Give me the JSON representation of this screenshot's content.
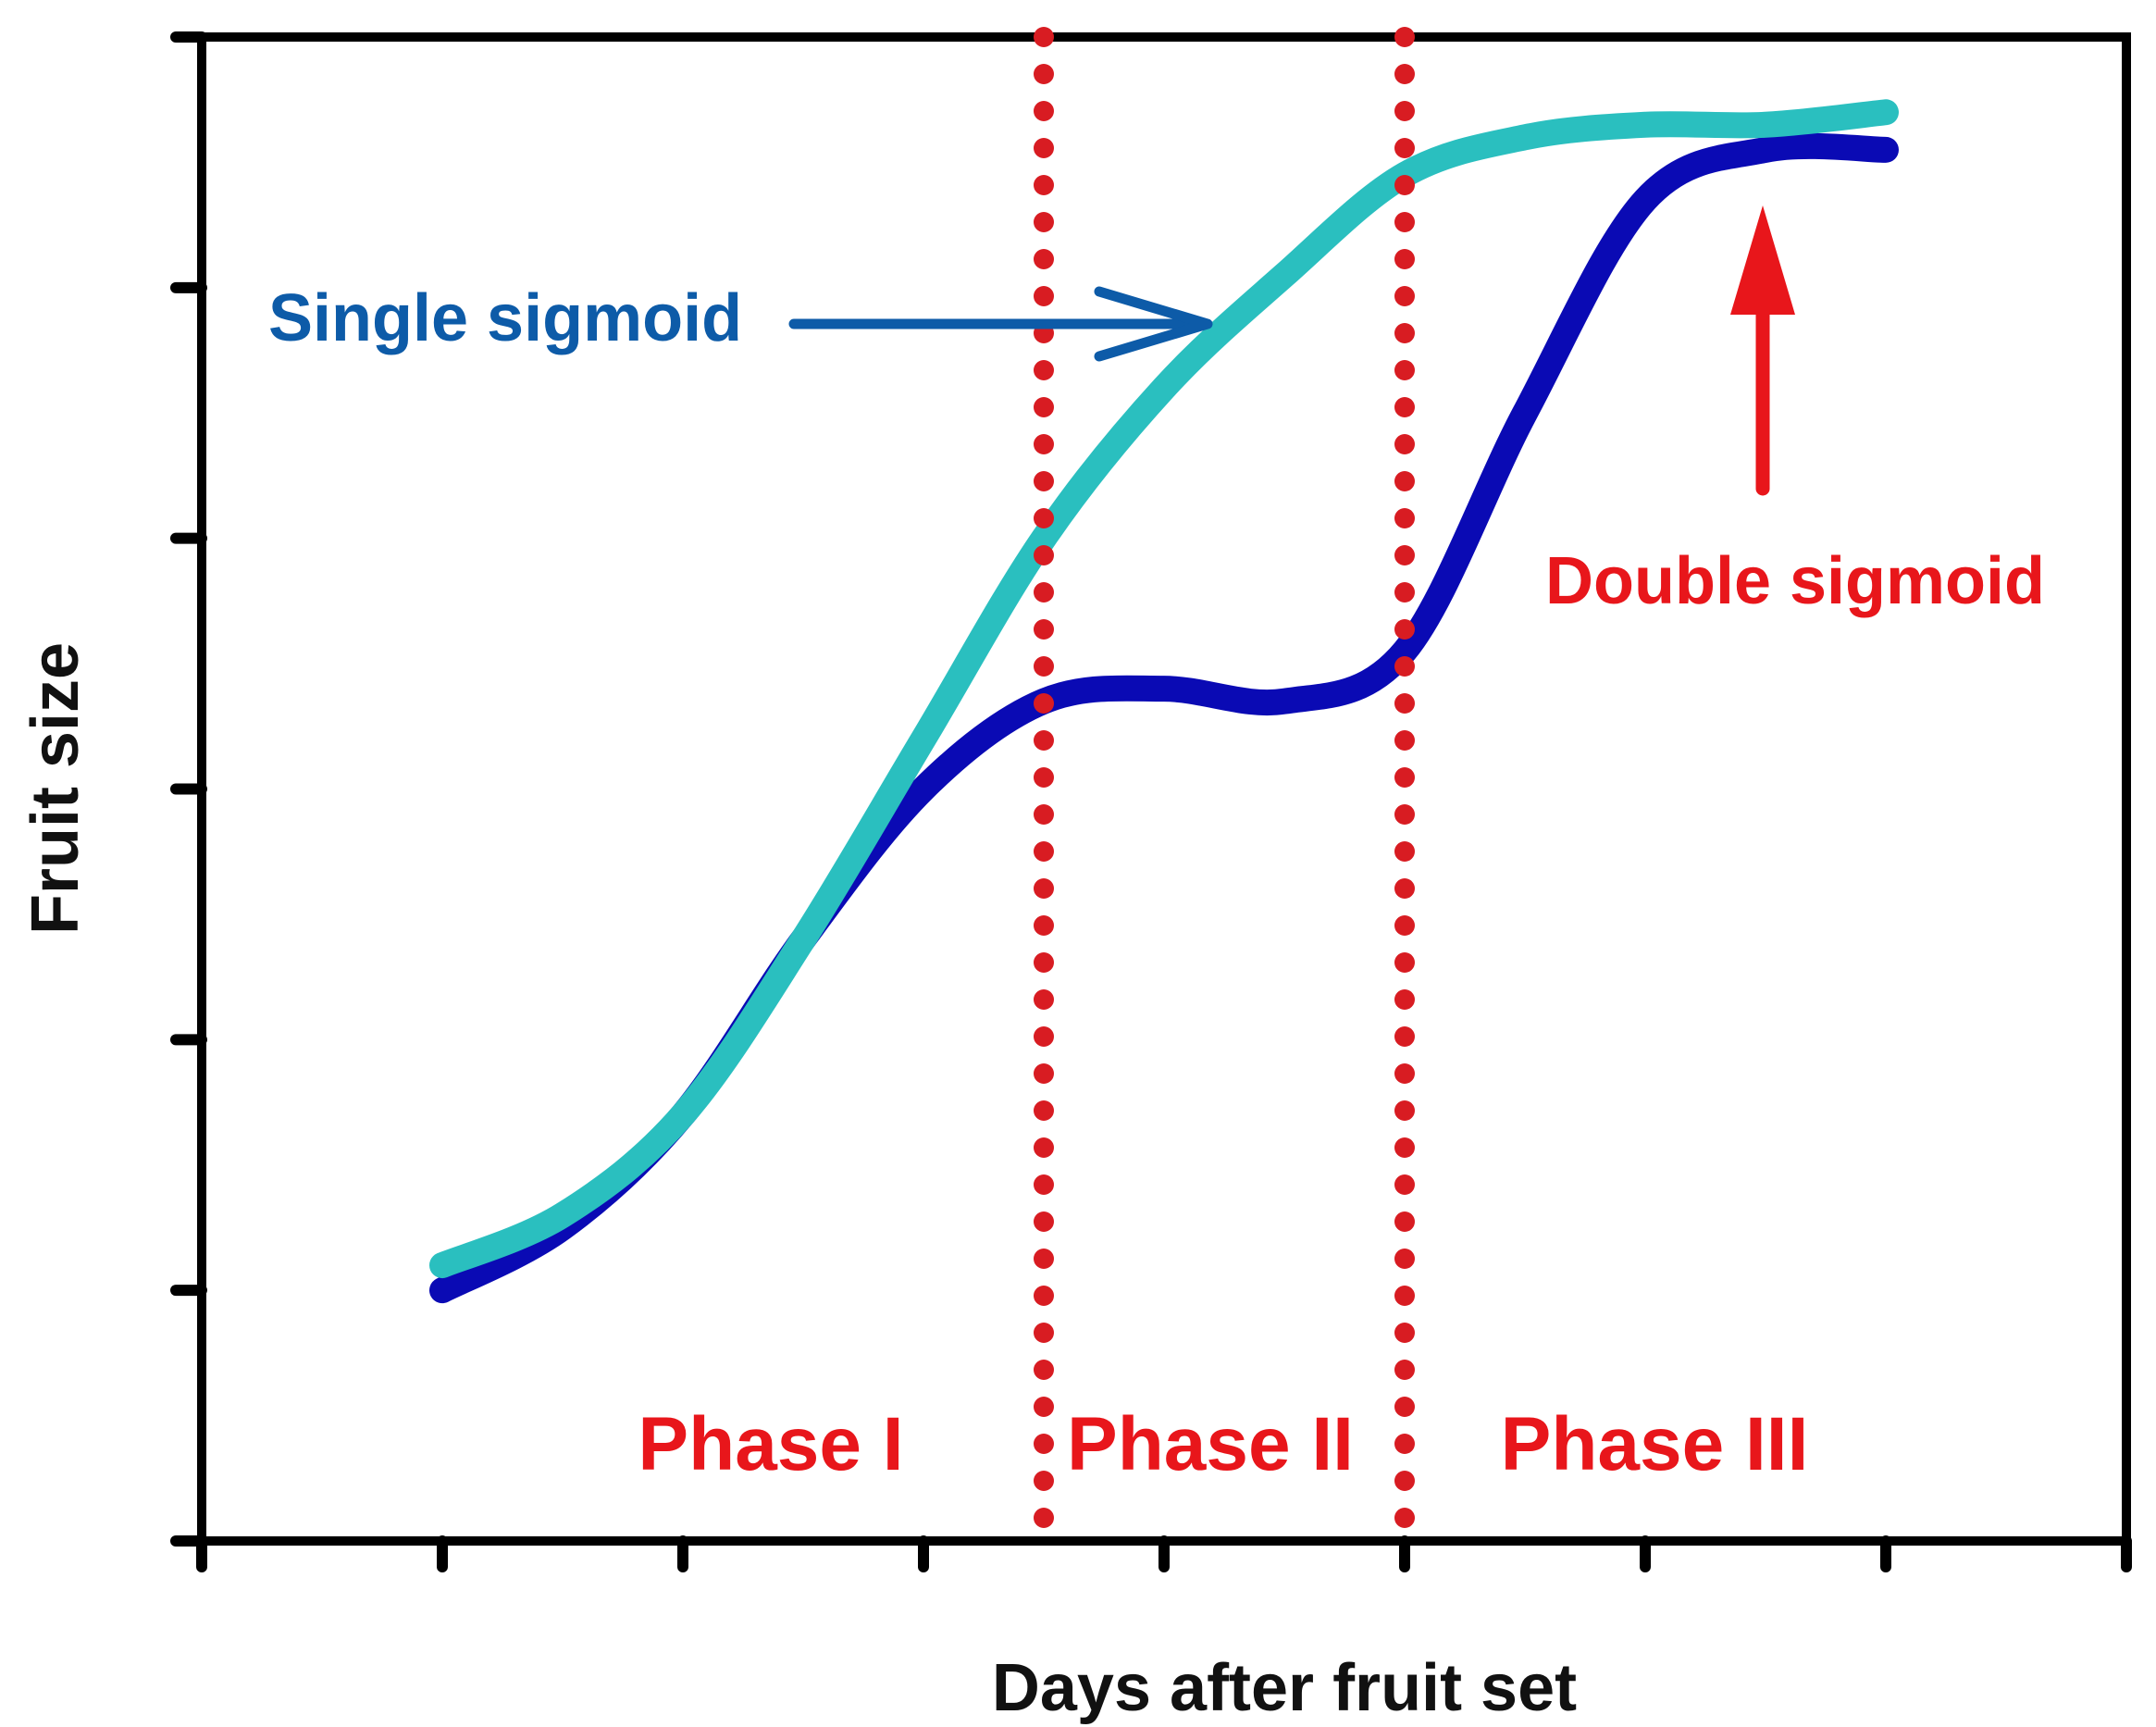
{
  "chart_data": {
    "type": "line",
    "title": "",
    "xlabel": "Days after fruit set",
    "ylabel": "Fruit size",
    "xlim": [
      0,
      8
    ],
    "ylim": [
      0,
      6
    ],
    "x_ticks": [
      1,
      2,
      3,
      4,
      5,
      6,
      7
    ],
    "y_ticks": [
      1,
      2,
      3,
      4,
      5
    ],
    "grid": false,
    "legend": "none",
    "series": [
      {
        "name": "Single sigmoid",
        "color": "#2ABFBF",
        "x": [
          1,
          1.5,
          2,
          2.5,
          3,
          3.5,
          4,
          4.5,
          5,
          5.5,
          6,
          6.5,
          7
        ],
        "y": [
          1.1,
          1.3,
          1.7,
          2.4,
          3.2,
          4.0,
          4.6,
          5.05,
          5.45,
          5.6,
          5.65,
          5.65,
          5.7
        ]
      },
      {
        "name": "Double sigmoid",
        "color": "#0A0AB4",
        "x": [
          1,
          1.5,
          2,
          2.5,
          3,
          3.5,
          4,
          4.5,
          5,
          5.5,
          6,
          6.5,
          7
        ],
        "y": [
          1.0,
          1.25,
          1.7,
          2.4,
          3.0,
          3.35,
          3.4,
          3.35,
          3.55,
          4.5,
          5.35,
          5.55,
          5.55
        ]
      }
    ],
    "phase_boundaries": [
      3.5,
      5
    ],
    "phase_labels": [
      "Phase I",
      "Phase II",
      "Phase III"
    ],
    "annotations": [
      {
        "text": "Single sigmoid",
        "color": "#0D5BA8",
        "points_to": "Single sigmoid"
      },
      {
        "text": "Double sigmoid",
        "color": "#E8161B",
        "points_to": "Double sigmoid"
      }
    ],
    "colors": {
      "axes": "#000000",
      "phase_line": "#D81C22",
      "phase_text": "#E8161B"
    }
  }
}
